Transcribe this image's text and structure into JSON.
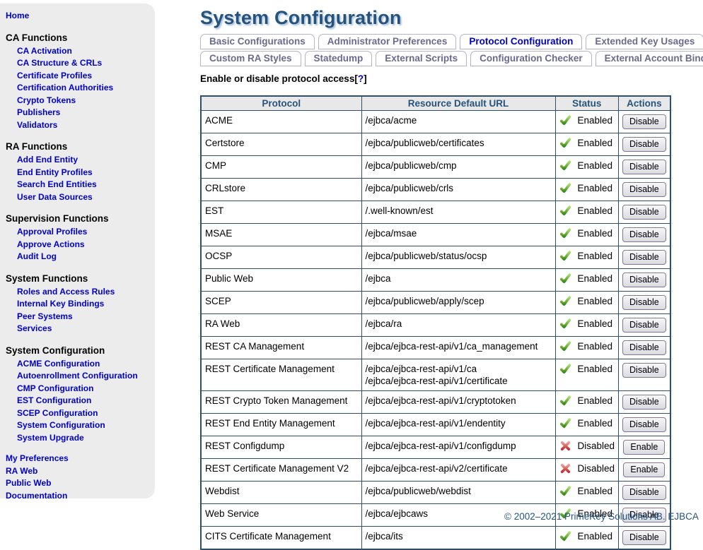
{
  "page": {
    "title": "System Configuration",
    "footer": "© 2002–2021 PrimeKey Solutions AB. EJBCA"
  },
  "colors": {
    "link_blue": "#0000cc",
    "title_navy": "#26537e",
    "table_border": "#2c5170",
    "header_bg": "#e8e8e8",
    "sidebar_bg": "#ececec",
    "enabled_green": "#3c8c14",
    "disabled_red": "#c22f2f"
  },
  "icons": {
    "enabled": "green-check-icon",
    "disabled": "red-x-icon"
  },
  "sidebar": {
    "home": "Home",
    "sections": [
      {
        "title": "CA Functions",
        "items": [
          "CA Activation",
          "CA Structure & CRLs",
          "Certificate Profiles",
          "Certification Authorities",
          "Crypto Tokens",
          "Publishers",
          "Validators"
        ]
      },
      {
        "title": "RA Functions",
        "items": [
          "Add End Entity",
          "End Entity Profiles",
          "Search End Entities",
          "User Data Sources"
        ]
      },
      {
        "title": "Supervision Functions",
        "items": [
          "Approval Profiles",
          "Approve Actions",
          "Audit Log"
        ]
      },
      {
        "title": "System Functions",
        "items": [
          "Roles and Access Rules",
          "Internal Key Bindings",
          "Peer Systems",
          "Services"
        ]
      },
      {
        "title": "System Configuration",
        "items": [
          "ACME Configuration",
          "Autoenrollment Configuration",
          "CMP Configuration",
          "EST Configuration",
          "SCEP Configuration",
          "System Configuration",
          "System Upgrade"
        ]
      }
    ],
    "root_links": [
      "My Preferences",
      "RA Web",
      "Public Web",
      "Documentation"
    ]
  },
  "tabs": {
    "row1": [
      {
        "label": "Basic Configurations",
        "active": false
      },
      {
        "label": "Administrator Preferences",
        "active": false
      },
      {
        "label": "Protocol Configuration",
        "active": true
      },
      {
        "label": "Extended Key Usages",
        "active": false
      }
    ],
    "row2": [
      {
        "label": "Custom RA Styles",
        "active": false
      },
      {
        "label": "Statedump",
        "active": false
      },
      {
        "label": "External Scripts",
        "active": false
      },
      {
        "label": "Configuration Checker",
        "active": false
      },
      {
        "label": "External Account Bindings",
        "active": false
      }
    ]
  },
  "subtitle": {
    "text": "Enable or disable protocol access",
    "bracket_open": "[",
    "help_mark": "?",
    "bracket_close": "]"
  },
  "table": {
    "headers": [
      "Protocol",
      "Resource Default URL",
      "Status",
      "Actions"
    ],
    "rows": [
      {
        "protocol": "ACME",
        "urls": [
          "/ejbca/acme"
        ],
        "status": "Enabled",
        "action": "Disable"
      },
      {
        "protocol": "Certstore",
        "urls": [
          "/ejbca/publicweb/certificates"
        ],
        "status": "Enabled",
        "action": "Disable"
      },
      {
        "protocol": "CMP",
        "urls": [
          "/ejbca/publicweb/cmp"
        ],
        "status": "Enabled",
        "action": "Disable"
      },
      {
        "protocol": "CRLstore",
        "urls": [
          "/ejbca/publicweb/crls"
        ],
        "status": "Enabled",
        "action": "Disable"
      },
      {
        "protocol": "EST",
        "urls": [
          "/.well-known/est"
        ],
        "status": "Enabled",
        "action": "Disable"
      },
      {
        "protocol": "MSAE",
        "urls": [
          "/ejbca/msae"
        ],
        "status": "Enabled",
        "action": "Disable"
      },
      {
        "protocol": "OCSP",
        "urls": [
          "/ejbca/publicweb/status/ocsp"
        ],
        "status": "Enabled",
        "action": "Disable"
      },
      {
        "protocol": "Public Web",
        "urls": [
          "/ejbca"
        ],
        "status": "Enabled",
        "action": "Disable"
      },
      {
        "protocol": "SCEP",
        "urls": [
          "/ejbca/publicweb/apply/scep"
        ],
        "status": "Enabled",
        "action": "Disable"
      },
      {
        "protocol": "RA Web",
        "urls": [
          "/ejbca/ra"
        ],
        "status": "Enabled",
        "action": "Disable"
      },
      {
        "protocol": "REST CA Management",
        "urls": [
          "/ejbca/ejbca-rest-api/v1/ca_management"
        ],
        "status": "Enabled",
        "action": "Disable"
      },
      {
        "protocol": "REST Certificate Management",
        "urls": [
          "/ejbca/ejbca-rest-api/v1/ca",
          "/ejbca/ejbca-rest-api/v1/certificate"
        ],
        "status": "Enabled",
        "action": "Disable"
      },
      {
        "protocol": "REST Crypto Token Management",
        "urls": [
          "/ejbca/ejbca-rest-api/v1/cryptotoken"
        ],
        "status": "Enabled",
        "action": "Disable"
      },
      {
        "protocol": "REST End Entity Management",
        "urls": [
          "/ejbca/ejbca-rest-api/v1/endentity"
        ],
        "status": "Enabled",
        "action": "Disable"
      },
      {
        "protocol": "REST Configdump",
        "urls": [
          "/ejbca/ejbca-rest-api/v1/configdump"
        ],
        "status": "Disabled",
        "action": "Enable"
      },
      {
        "protocol": "REST Certificate Management V2",
        "urls": [
          "/ejbca/ejbca-rest-api/v2/certificate"
        ],
        "status": "Disabled",
        "action": "Enable"
      },
      {
        "protocol": "Webdist",
        "urls": [
          "/ejbca/publicweb/webdist"
        ],
        "status": "Enabled",
        "action": "Disable"
      },
      {
        "protocol": "Web Service",
        "urls": [
          "/ejbca/ejbcaws"
        ],
        "status": "Enabled",
        "action": "Disable"
      },
      {
        "protocol": "CITS Certificate Management",
        "urls": [
          "/ejbca/its"
        ],
        "status": "Enabled",
        "action": "Disable"
      }
    ]
  }
}
